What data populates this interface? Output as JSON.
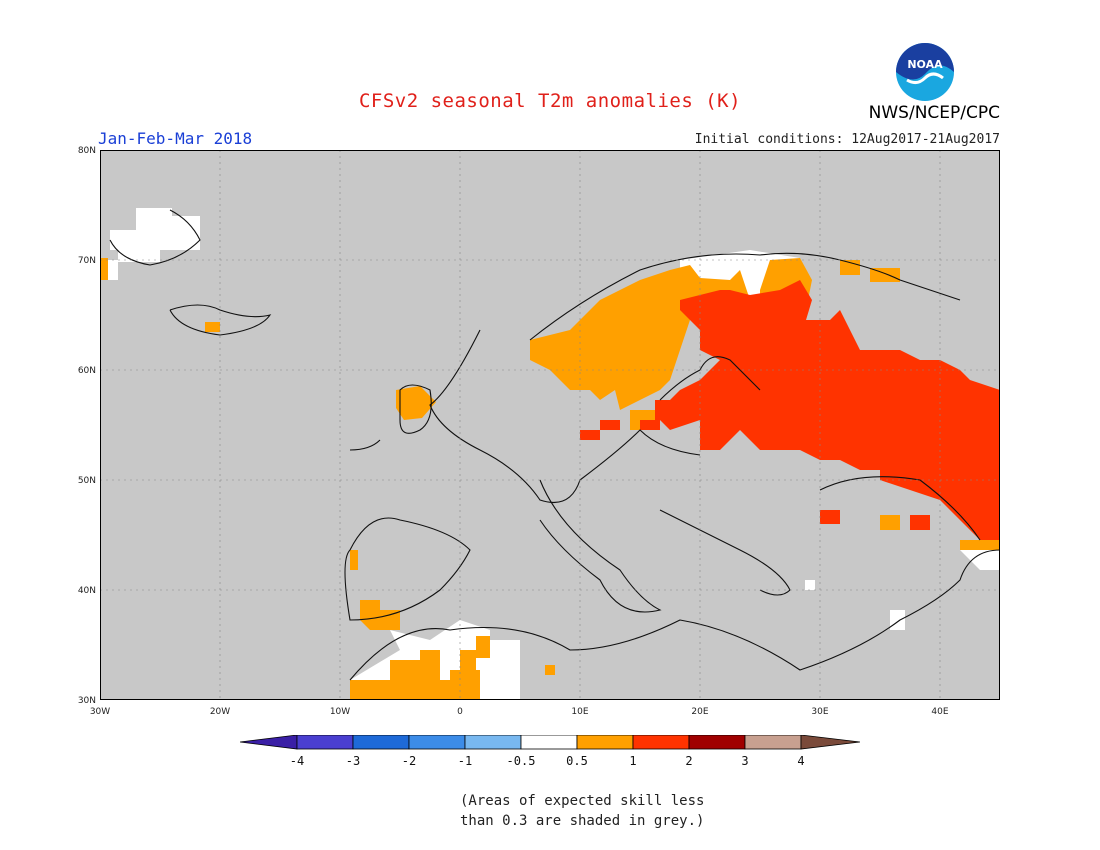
{
  "title": "CFSv2 seasonal T2m anomalies (K)",
  "period": "Jan-Feb-Mar 2018",
  "initial_conditions": "Initial conditions: 12Aug2017-21Aug2017",
  "agency": "NWS/NCEP/CPC",
  "logo_text": "NOAA",
  "footnote_line1": "(Areas of expected skill less",
  "footnote_line2": "than 0.3 are shaded in grey.)",
  "map": {
    "lon_range": [
      -30,
      45
    ],
    "lat_range": [
      30,
      80
    ],
    "lat_labels": [
      "80N",
      "70N",
      "60N",
      "50N",
      "40N",
      "30N"
    ],
    "lon_labels": [
      "30W",
      "20W",
      "10W",
      "0",
      "10E",
      "20E",
      "30E",
      "40E"
    ],
    "no_skill_color": "#c8c8c8"
  },
  "colorbar": {
    "tick_labels": [
      "-4",
      "-3",
      "-2",
      "-1",
      "-0.5",
      "0.5",
      "1",
      "2",
      "3",
      "4"
    ],
    "colors": [
      "#3a1fa6",
      "#4a3fd0",
      "#1e6ad8",
      "#3c8ce8",
      "#78b8f0",
      "#ffffff",
      "#ffa000",
      "#ff3300",
      "#a00000",
      "#c8a090",
      "#7a4a3a"
    ]
  }
}
